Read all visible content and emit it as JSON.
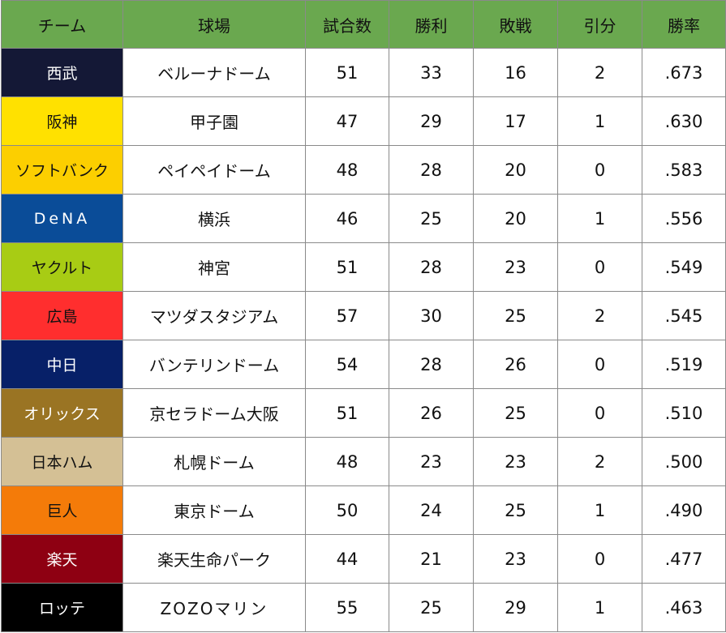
{
  "headers": [
    "チーム",
    "球場",
    "試合数",
    "勝利",
    "敗戦",
    "引分",
    "勝率"
  ],
  "header_color": "#6aa84f",
  "rows": [
    {
      "team": "西武",
      "stadium": "ベルーナドーム",
      "games": "51",
      "wins": "33",
      "losses": "16",
      "draws": "2",
      "pct": ".673",
      "team_bg": "#141836",
      "team_fg": "#ffffff"
    },
    {
      "team": "阪神",
      "stadium": "甲子園",
      "games": "47",
      "wins": "29",
      "losses": "17",
      "draws": "1",
      "pct": ".630",
      "team_bg": "#ffe100",
      "team_fg": "#111111"
    },
    {
      "team": "ソフトバンク",
      "stadium": "ペイペイドーム",
      "games": "48",
      "wins": "28",
      "losses": "20",
      "draws": "0",
      "pct": ".583",
      "team_bg": "#fccf00",
      "team_fg": "#111111"
    },
    {
      "team": "DeNA",
      "stadium": "横浜",
      "games": "46",
      "wins": "25",
      "losses": "20",
      "draws": "1",
      "pct": ".556",
      "team_bg": "#0a4c98",
      "team_fg": "#ffffff"
    },
    {
      "team": "ヤクルト",
      "stadium": "神宮",
      "games": "51",
      "wins": "28",
      "losses": "23",
      "draws": "0",
      "pct": ".549",
      "team_bg": "#a8cc14",
      "team_fg": "#111111"
    },
    {
      "team": "広島",
      "stadium": "マツダスタジアム",
      "games": "57",
      "wins": "30",
      "losses": "25",
      "draws": "2",
      "pct": ".545",
      "team_bg": "#ff2e2e",
      "team_fg": "#111111"
    },
    {
      "team": "中日",
      "stadium": "バンテリンドーム",
      "games": "54",
      "wins": "28",
      "losses": "26",
      "draws": "0",
      "pct": ".519",
      "team_bg": "#072068",
      "team_fg": "#ffffff"
    },
    {
      "team": "オリックス",
      "stadium": "京セラドーム大阪",
      "games": "51",
      "wins": "26",
      "losses": "25",
      "draws": "0",
      "pct": ".510",
      "team_bg": "#9a7423",
      "team_fg": "#ffffff"
    },
    {
      "team": "日本ハム",
      "stadium": "札幌ドーム",
      "games": "48",
      "wins": "23",
      "losses": "23",
      "draws": "2",
      "pct": ".500",
      "team_bg": "#d4c095",
      "team_fg": "#111111"
    },
    {
      "team": "巨人",
      "stadium": "東京ドーム",
      "games": "50",
      "wins": "24",
      "losses": "25",
      "draws": "1",
      "pct": ".490",
      "team_bg": "#f47b09",
      "team_fg": "#111111"
    },
    {
      "team": "楽天",
      "stadium": "楽天生命パーク",
      "games": "44",
      "wins": "21",
      "losses": "23",
      "draws": "0",
      "pct": ".477",
      "team_bg": "#8e0012",
      "team_fg": "#ffffff"
    },
    {
      "team": "ロッテ",
      "stadium": "ZOZOマリン",
      "games": "55",
      "wins": "25",
      "losses": "29",
      "draws": "1",
      "pct": ".463",
      "team_bg": "#000000",
      "team_fg": "#ffffff"
    }
  ]
}
